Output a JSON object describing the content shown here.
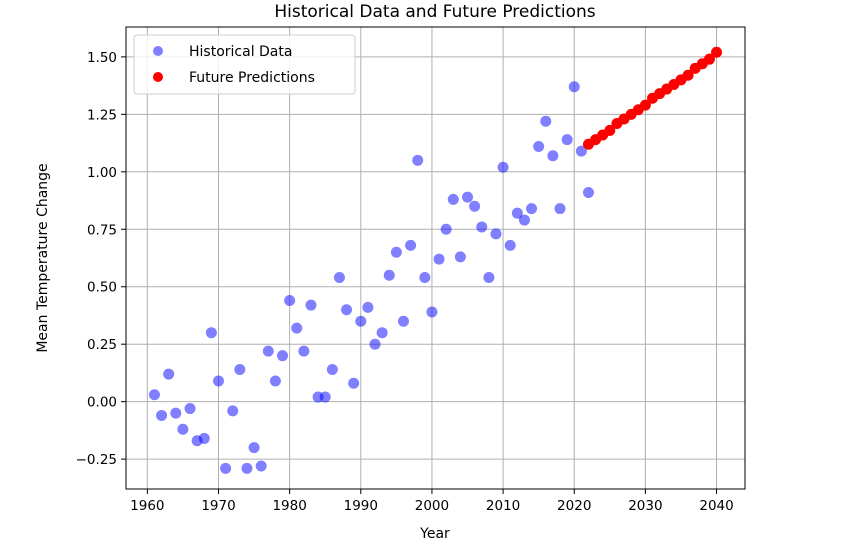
{
  "chart_data": {
    "type": "scatter",
    "title": "Historical Data and Future Predictions",
    "xlabel": "Year",
    "ylabel": "Mean Temperature Change",
    "xlim": [
      1957,
      2044
    ],
    "ylim": [
      -0.38,
      1.63
    ],
    "x_ticks": [
      1960,
      1970,
      1980,
      1990,
      2000,
      2010,
      2020,
      2030,
      2040
    ],
    "x_tick_labels": [
      "1960",
      "1970",
      "1980",
      "1990",
      "2000",
      "2010",
      "2020",
      "2030",
      "2040"
    ],
    "y_ticks": [
      -0.25,
      0,
      0.25,
      0.5,
      0.75,
      1.0,
      1.25,
      1.5
    ],
    "y_tick_labels": [
      "−0.25",
      "0.00",
      "0.25",
      "0.50",
      "0.75",
      "1.00",
      "1.25",
      "1.50"
    ],
    "grid": true,
    "legend": {
      "position": "top-left"
    },
    "series": [
      {
        "name": "Historical Data",
        "color": "#0000ff",
        "opacity": 0.5,
        "x": [
          1961,
          1962,
          1963,
          1964,
          1965,
          1966,
          1967,
          1968,
          1969,
          1970,
          1971,
          1972,
          1973,
          1974,
          1975,
          1976,
          1977,
          1978,
          1979,
          1980,
          1981,
          1982,
          1983,
          1984,
          1985,
          1986,
          1987,
          1988,
          1989,
          1990,
          1991,
          1992,
          1993,
          1994,
          1995,
          1996,
          1997,
          1998,
          1999,
          2000,
          2001,
          2002,
          2003,
          2004,
          2005,
          2006,
          2007,
          2008,
          2009,
          2010,
          2011,
          2012,
          2013,
          2014,
          2015,
          2016,
          2017,
          2018,
          2019,
          2020,
          2021,
          2022
        ],
        "y": [
          0.03,
          -0.06,
          0.12,
          -0.05,
          -0.12,
          -0.03,
          -0.17,
          -0.16,
          0.3,
          0.09,
          -0.29,
          -0.04,
          0.14,
          -0.29,
          -0.2,
          -0.28,
          0.22,
          0.09,
          0.2,
          0.44,
          0.32,
          0.22,
          0.42,
          0.02,
          0.02,
          0.14,
          0.54,
          0.4,
          0.08,
          0.35,
          0.41,
          0.25,
          0.3,
          0.55,
          0.65,
          0.35,
          0.68,
          1.05,
          0.54,
          0.39,
          0.62,
          0.75,
          0.88,
          0.63,
          0.89,
          0.85,
          0.76,
          0.54,
          0.73,
          1.02,
          0.68,
          0.82,
          0.79,
          0.84,
          1.11,
          1.22,
          1.07,
          0.84,
          1.14,
          1.37,
          1.09,
          0.91
        ]
      },
      {
        "name": "Future Predictions",
        "color": "#ff0000",
        "opacity": 1.0,
        "x": [
          2022,
          2023,
          2024,
          2025,
          2026,
          2027,
          2028,
          2029,
          2030,
          2031,
          2032,
          2033,
          2034,
          2035,
          2036,
          2037,
          2038,
          2039,
          2040
        ],
        "y": [
          1.12,
          1.14,
          1.16,
          1.18,
          1.21,
          1.23,
          1.25,
          1.27,
          1.29,
          1.32,
          1.34,
          1.36,
          1.38,
          1.4,
          1.42,
          1.45,
          1.47,
          1.49,
          1.52
        ]
      }
    ]
  }
}
